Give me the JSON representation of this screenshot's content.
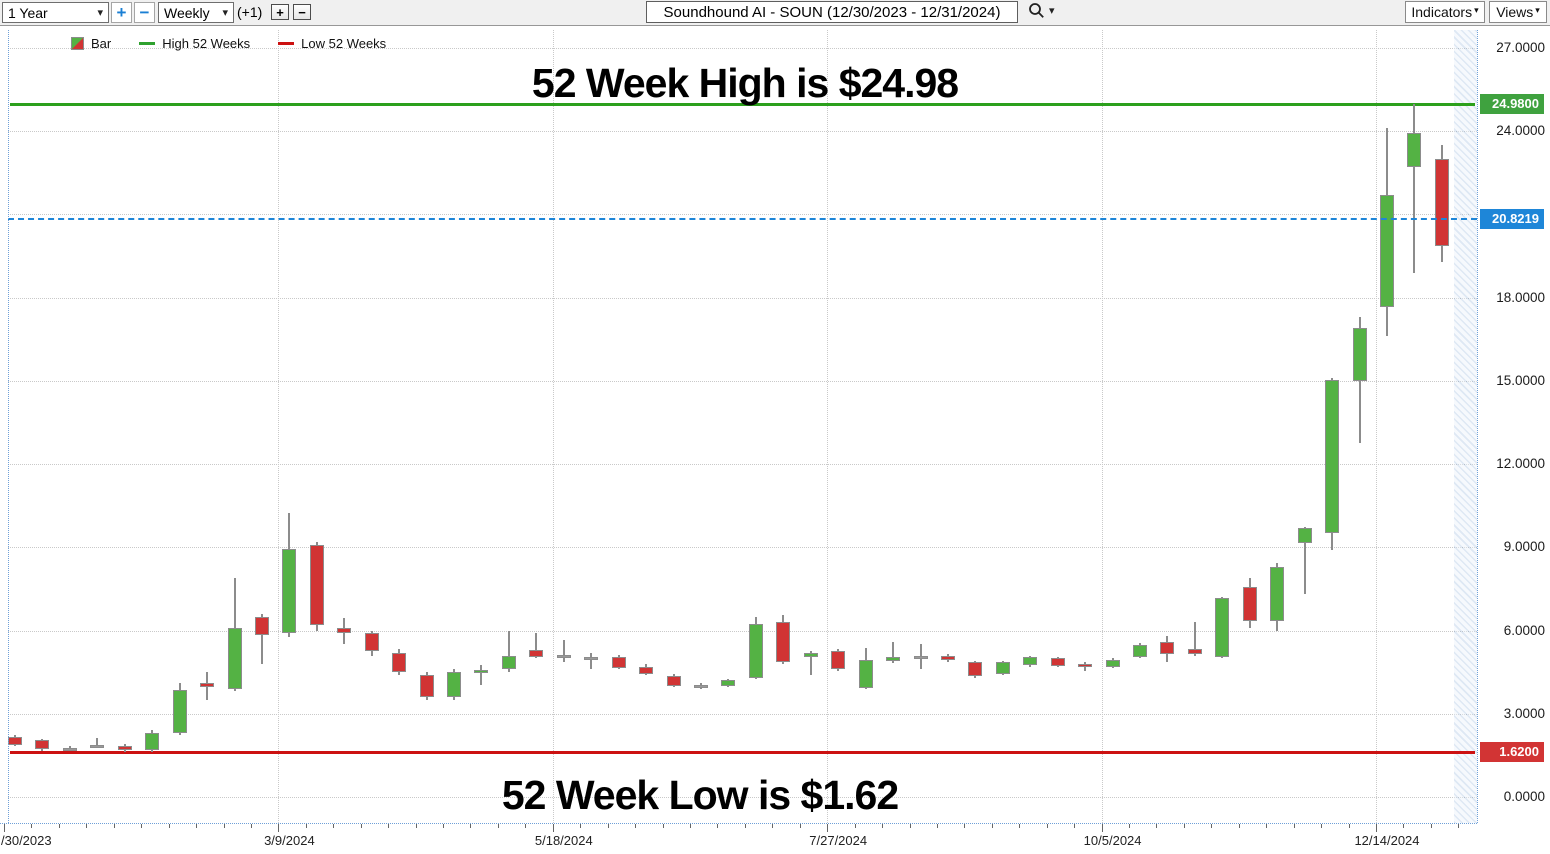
{
  "toolbar": {
    "range_value": "1 Year",
    "zoom_in_glyph": "+",
    "zoom_out_glyph": "−",
    "period_value": "Weekly",
    "bar_offset": "(+1)",
    "bar_plus_glyph": "+",
    "bar_minus_glyph": "−",
    "symbol_title": "Soundhound AI - SOUN (12/30/2023 - 12/31/2024)",
    "indicators_label": "Indicators",
    "views_label": "Views"
  },
  "icons": {
    "chevron_down": "▾"
  },
  "legend": {
    "bar_label": "Bar",
    "high_label": "High 52 Weeks",
    "low_label": "Low 52 Weeks",
    "high_color": "#2fa12f",
    "low_color": "#cc1111"
  },
  "annotations": {
    "high_text": "52 Week High is $24.98",
    "low_text": "52 Week Low is $1.62"
  },
  "chart_data": {
    "type": "bar",
    "subtype": "weekly-ohlc-candlestick",
    "symbol": "SOUN",
    "title": "Soundhound AI - SOUN (12/30/2023 - 12/31/2024)",
    "ylim": [
      0,
      27
    ],
    "up_color": "#54b244",
    "down_color": "#d13434",
    "doji_color": "#9a9a9a",
    "wick_color": "#8c8c8c",
    "grid_color": "#c9c9c9",
    "border_color": "#6fa0d8",
    "y_ticks": [
      {
        "value": 27,
        "label": "27.0000"
      },
      {
        "value": 24,
        "label": "24.0000"
      },
      {
        "value": 21,
        "label": ""
      },
      {
        "value": 18,
        "label": "18.0000"
      },
      {
        "value": 15,
        "label": "15.0000"
      },
      {
        "value": 12,
        "label": "12.0000"
      },
      {
        "value": 9,
        "label": "9.0000"
      },
      {
        "value": 6,
        "label": "6.0000"
      },
      {
        "value": 3,
        "label": "3.0000"
      },
      {
        "value": 0,
        "label": "0.0000"
      }
    ],
    "x_ticks": [
      {
        "label": "/30/2023",
        "week": 0,
        "grid": false
      },
      {
        "label": "3/9/2024",
        "week": 10,
        "grid": true
      },
      {
        "label": "5/18/2024",
        "week": 20,
        "grid": true
      },
      {
        "label": "7/27/2024",
        "week": 30,
        "grid": true
      },
      {
        "label": "10/5/2024",
        "week": 40,
        "grid": true
      },
      {
        "label": "12/14/2024",
        "week": 50,
        "grid": true
      }
    ],
    "lines": {
      "high52": {
        "price": 24.98,
        "color": "#2ca01c",
        "label": "24.9800",
        "badge": "#3fa23f"
      },
      "low52": {
        "price": 1.62,
        "color": "#cc1111",
        "label": "1.6200",
        "badge": "#d23434"
      },
      "last": {
        "price": 20.8219,
        "color": "#1e86d8",
        "label": "20.8219",
        "badge": "#1e86d8"
      }
    },
    "candles": [
      [
        2.16,
        2.22,
        1.85,
        1.88
      ],
      [
        2.05,
        2.1,
        1.66,
        1.72
      ],
      [
        1.77,
        1.84,
        1.68,
        1.73
      ],
      [
        1.87,
        2.12,
        1.75,
        1.88
      ],
      [
        1.85,
        1.92,
        1.63,
        1.7
      ],
      [
        1.7,
        2.4,
        1.62,
        2.3
      ],
      [
        2.31,
        4.1,
        2.25,
        3.86
      ],
      [
        4.1,
        4.5,
        3.5,
        3.95
      ],
      [
        3.9,
        7.9,
        3.82,
        6.1
      ],
      [
        6.5,
        6.6,
        4.8,
        5.85
      ],
      [
        5.9,
        10.25,
        5.75,
        8.95
      ],
      [
        9.1,
        9.2,
        6.0,
        6.2
      ],
      [
        6.1,
        6.45,
        5.5,
        5.9
      ],
      [
        5.9,
        6.0,
        5.1,
        5.25
      ],
      [
        5.2,
        5.35,
        4.4,
        4.5
      ],
      [
        4.4,
        4.5,
        3.5,
        3.6
      ],
      [
        3.6,
        4.6,
        3.5,
        4.5
      ],
      [
        4.47,
        4.76,
        4.04,
        4.58
      ],
      [
        4.6,
        6.0,
        4.5,
        5.1
      ],
      [
        5.3,
        5.9,
        5.0,
        5.05
      ],
      [
        5.1,
        5.65,
        4.85,
        5.12
      ],
      [
        5.05,
        5.2,
        4.6,
        5.06
      ],
      [
        5.05,
        5.12,
        4.6,
        4.65
      ],
      [
        4.7,
        4.8,
        4.4,
        4.45
      ],
      [
        4.35,
        4.42,
        3.95,
        4.0
      ],
      [
        4.0,
        4.12,
        3.9,
        4.02
      ],
      [
        4.0,
        4.25,
        3.95,
        4.2
      ],
      [
        4.3,
        6.5,
        4.25,
        6.25
      ],
      [
        6.3,
        6.55,
        4.8,
        4.87
      ],
      [
        5.05,
        5.25,
        4.4,
        5.2
      ],
      [
        5.26,
        5.32,
        4.55,
        4.6
      ],
      [
        3.93,
        5.37,
        3.9,
        4.94
      ],
      [
        4.9,
        5.6,
        4.82,
        5.05
      ],
      [
        5.05,
        5.5,
        4.6,
        5.07
      ],
      [
        5.08,
        5.16,
        4.88,
        4.94
      ],
      [
        4.87,
        4.92,
        4.3,
        4.36
      ],
      [
        4.43,
        4.9,
        4.4,
        4.87
      ],
      [
        4.76,
        5.1,
        4.7,
        5.05
      ],
      [
        5.0,
        5.06,
        4.68,
        4.72
      ],
      [
        4.8,
        4.86,
        4.55,
        4.7
      ],
      [
        4.69,
        5.0,
        4.64,
        4.94
      ],
      [
        5.05,
        5.55,
        5.0,
        5.48
      ],
      [
        5.6,
        5.8,
        4.87,
        5.15
      ],
      [
        5.33,
        6.3,
        5.08,
        5.16
      ],
      [
        5.05,
        7.2,
        5.0,
        7.17
      ],
      [
        7.57,
        7.9,
        6.1,
        6.35
      ],
      [
        6.35,
        8.45,
        6.0,
        8.3
      ],
      [
        9.15,
        9.75,
        7.3,
        9.7
      ],
      [
        9.5,
        15.1,
        8.9,
        15.03
      ],
      [
        15.0,
        17.3,
        12.75,
        16.9
      ],
      [
        17.66,
        24.1,
        16.6,
        21.7
      ],
      [
        22.7,
        24.98,
        18.9,
        23.93
      ],
      [
        23.0,
        23.5,
        19.3,
        19.87
      ]
    ]
  }
}
